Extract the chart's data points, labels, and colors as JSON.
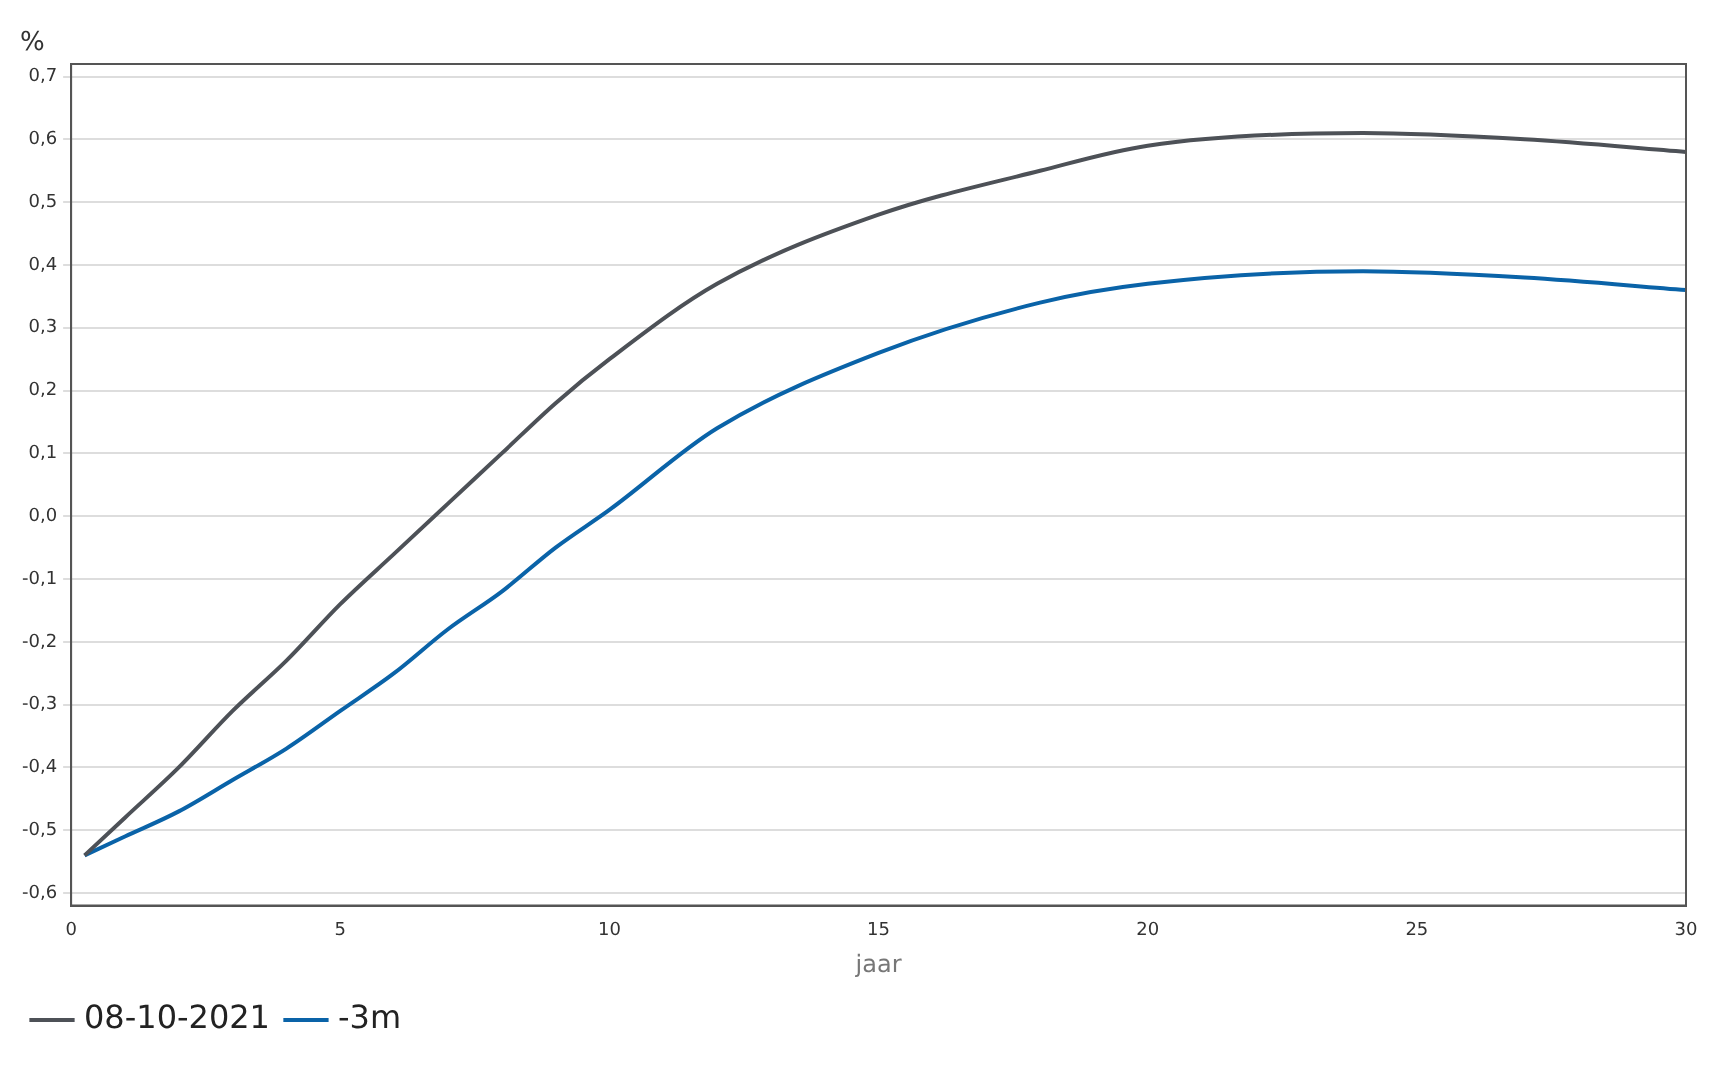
{
  "chart_data": {
    "type": "line",
    "xlabel": "jaar",
    "ylabel": "%",
    "series": [
      {
        "name": "08-10-2021",
        "color": "#4d5157",
        "x": [
          0.25,
          1,
          2,
          3,
          4,
          5,
          6,
          7,
          8,
          9,
          10,
          12,
          15,
          18,
          20,
          24,
          27,
          30
        ],
        "values": [
          -0.54,
          -0.48,
          -0.4,
          -0.31,
          -0.23,
          -0.14,
          -0.06,
          0.02,
          0.1,
          0.18,
          0.25,
          0.37,
          0.48,
          0.55,
          0.59,
          0.61,
          0.6,
          0.58
        ]
      },
      {
        "name": "-3m",
        "color": "#0a63a8",
        "x": [
          0.25,
          1,
          2,
          3,
          4,
          5,
          6,
          7,
          8,
          9,
          10,
          12,
          15,
          18,
          20,
          24,
          27,
          30
        ],
        "values": [
          -0.54,
          -0.51,
          -0.47,
          -0.42,
          -0.37,
          -0.31,
          -0.25,
          -0.18,
          -0.12,
          -0.05,
          0.01,
          0.14,
          0.26,
          0.34,
          0.37,
          0.39,
          0.38,
          0.36
        ]
      }
    ],
    "xlim": [
      0,
      30
    ],
    "xticks": [
      0,
      5,
      10,
      15,
      20,
      25,
      30
    ],
    "ylim": [
      -0.62,
      0.72
    ],
    "yticks": [
      {
        "value": -0.6,
        "label": "-0,6"
      },
      {
        "value": -0.5,
        "label": "-0,5"
      },
      {
        "value": -0.4,
        "label": "-0,4"
      },
      {
        "value": -0.3,
        "label": "-0,3"
      },
      {
        "value": -0.2,
        "label": "-0,2"
      },
      {
        "value": -0.1,
        "label": "-0,1"
      },
      {
        "value": 0,
        "label": "0,0"
      },
      {
        "value": 0.1,
        "label": "0,1"
      },
      {
        "value": 0.2,
        "label": "0,2"
      },
      {
        "value": 0.3,
        "label": "0,3"
      },
      {
        "value": 0.4,
        "label": "0,4"
      },
      {
        "value": 0.5,
        "label": "0,5"
      },
      {
        "value": 0.6,
        "label": "0,6"
      },
      {
        "value": 0.7,
        "label": "0,7"
      }
    ],
    "grid": "y",
    "legend": "bottom left",
    "marker": "none",
    "line_style": "solid"
  }
}
